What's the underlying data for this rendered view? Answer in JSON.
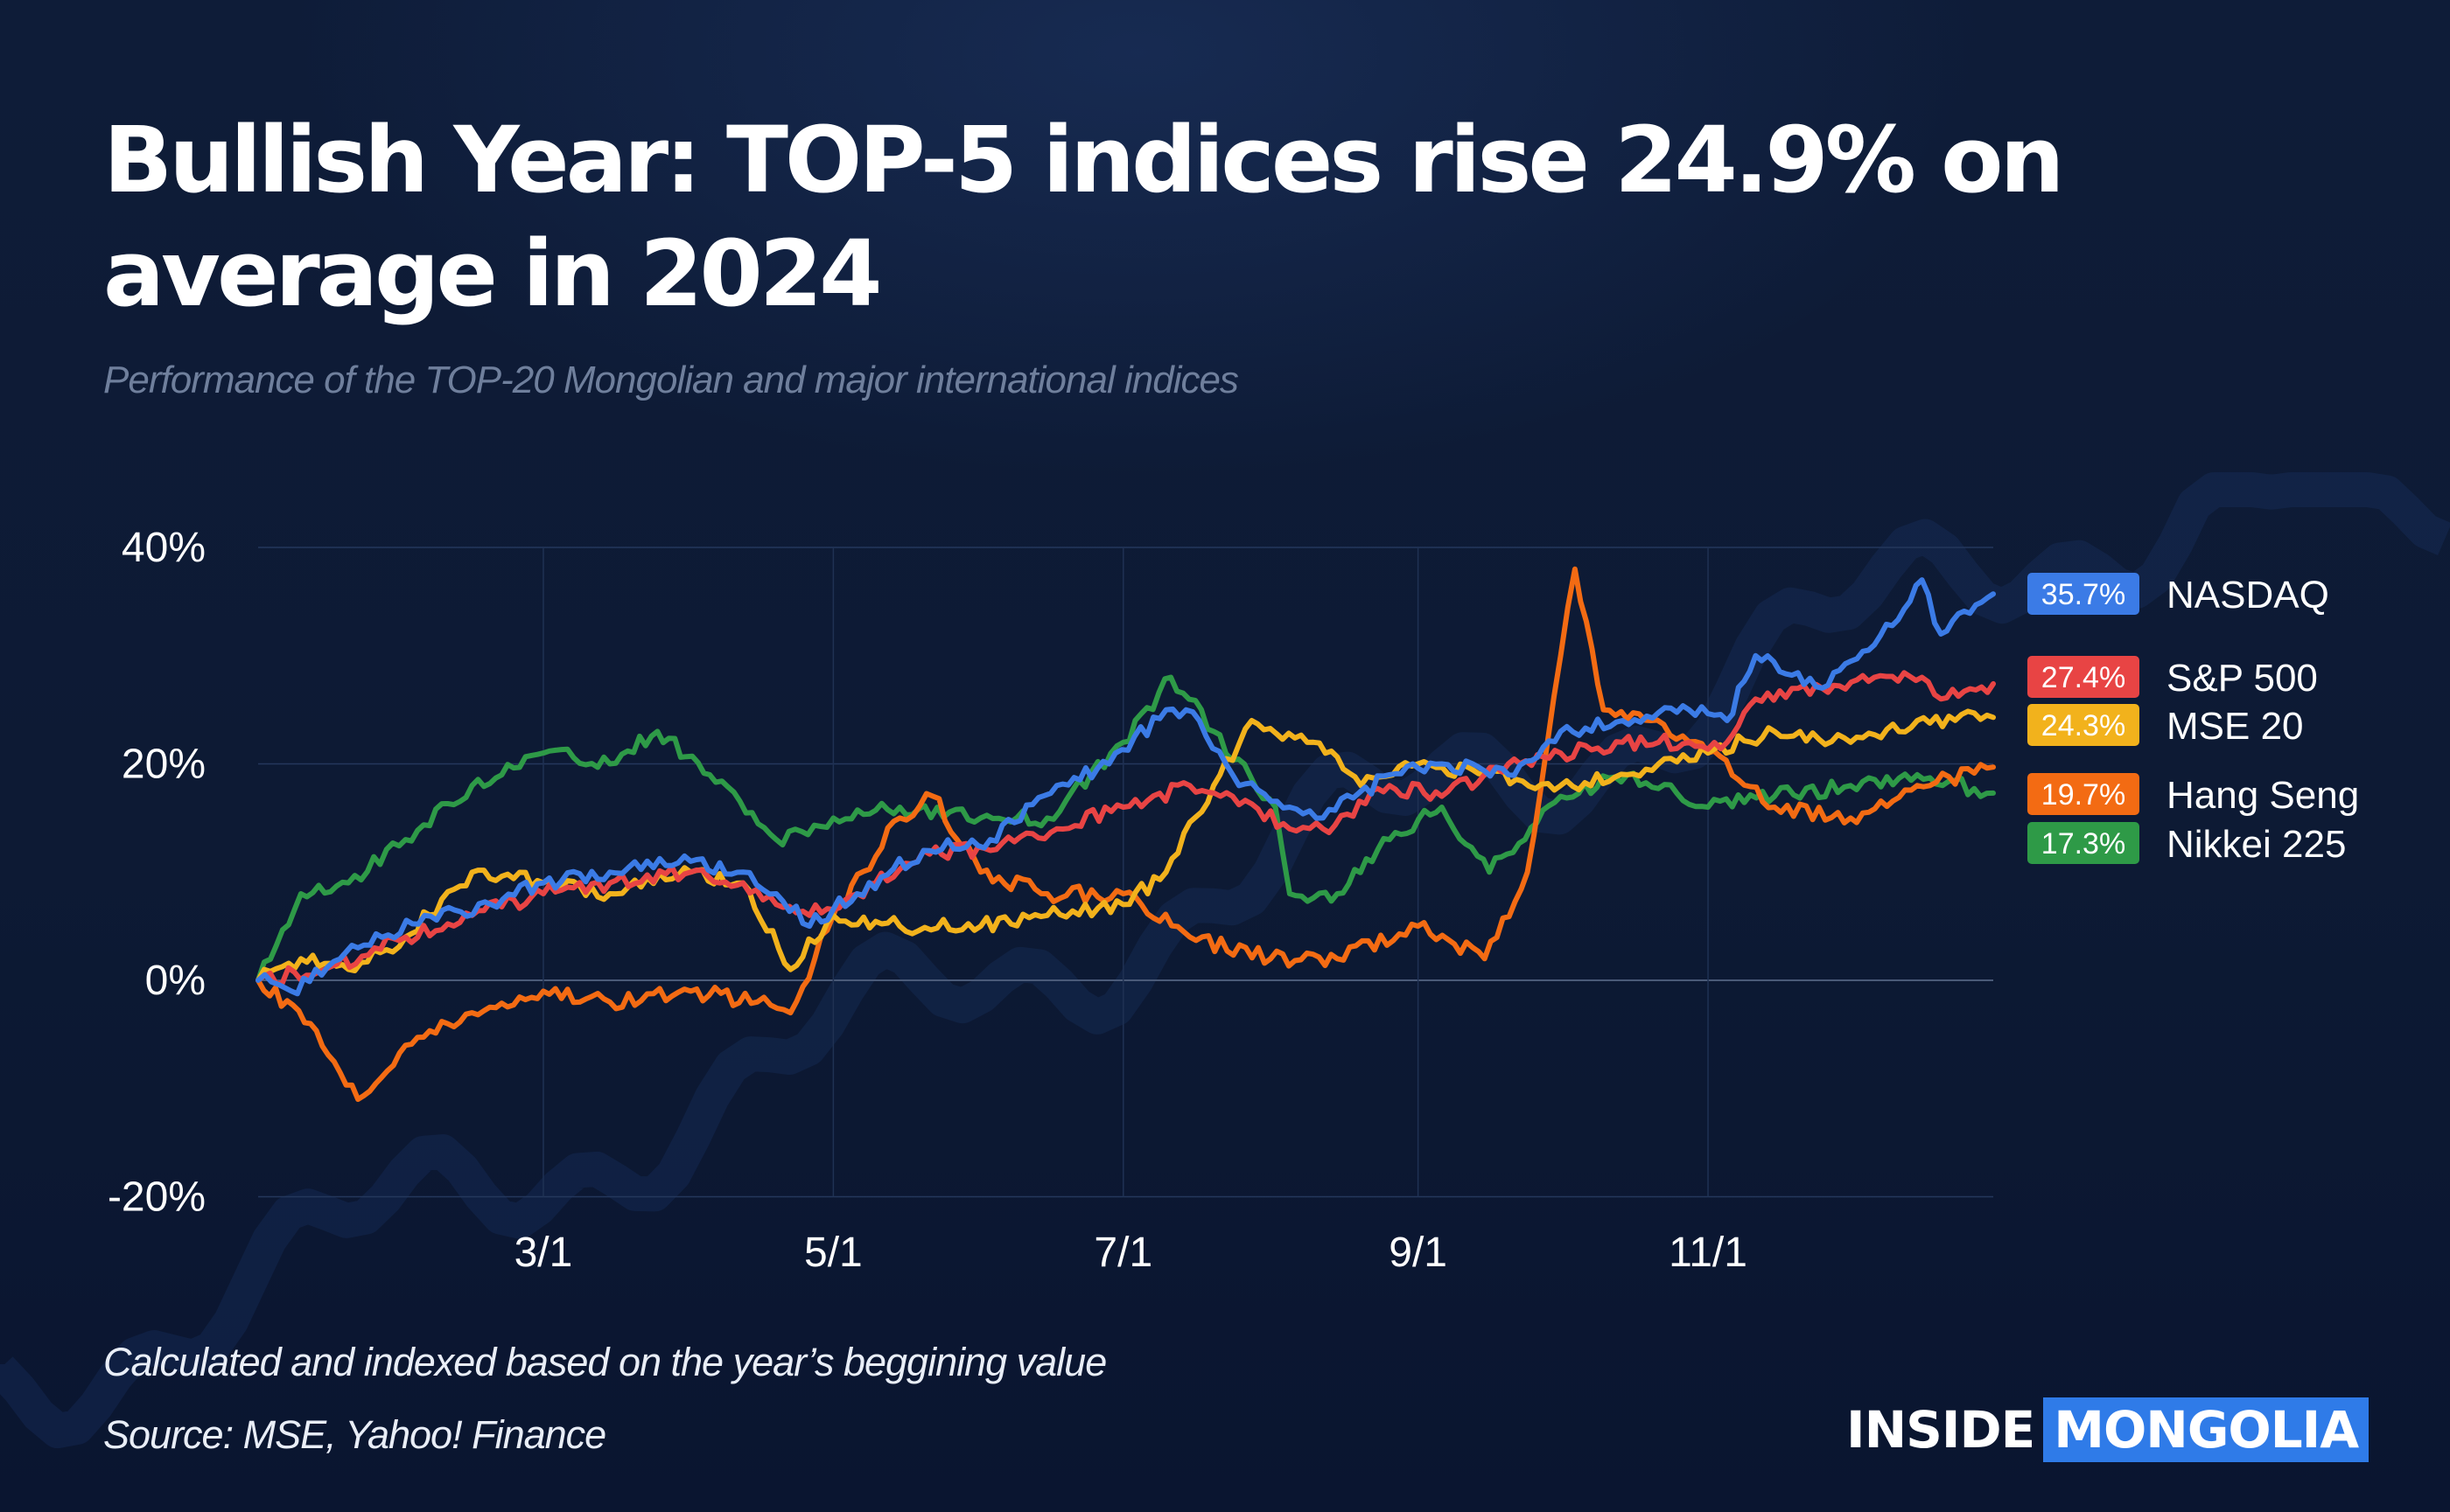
{
  "title": "Bullish Year: TOP-5 indices rise 24.9% on average in 2024",
  "subtitle": "Performance of the TOP-20 Mongolian and major international indices",
  "footnote": "Calculated and indexed based on the year’s beggining value",
  "source": "Source: MSE, Yahoo! Finance",
  "brand": {
    "part1": "INSIDE",
    "part2": "MONGOLIA",
    "accent": "#2f7be8"
  },
  "chart_data": {
    "type": "line",
    "title": "Bullish Year: TOP-5 indices rise 24.9% on average in 2024",
    "xlabel": "",
    "ylabel": "",
    "ylim": [
      -20,
      40
    ],
    "xlim": [
      "2024-01-01",
      "2024-12-31"
    ],
    "y_ticks": [
      40,
      20,
      0,
      -20
    ],
    "y_tick_labels": [
      "40%",
      "20%",
      "0%",
      "-20%"
    ],
    "x_ticks": [
      "2024-03-01",
      "2024-05-01",
      "2024-07-01",
      "2024-09-01",
      "2024-11-01"
    ],
    "x_tick_labels": [
      "3/1",
      "5/1",
      "7/1",
      "9/1",
      "11/1"
    ],
    "grid": true,
    "legend_position": "right",
    "series": [
      {
        "name": "NASDAQ",
        "color": "#3b7be6",
        "final_label": "35.7%",
        "points": [
          [
            "2024-01-01",
            0
          ],
          [
            "2024-01-08",
            -1
          ],
          [
            "2024-01-22",
            3
          ],
          [
            "2024-02-05",
            6
          ],
          [
            "2024-02-19",
            7
          ],
          [
            "2024-03-01",
            9
          ],
          [
            "2024-03-15",
            10
          ],
          [
            "2024-04-01",
            11
          ],
          [
            "2024-04-12",
            10
          ],
          [
            "2024-04-19",
            8
          ],
          [
            "2024-04-26",
            5
          ],
          [
            "2024-05-06",
            8
          ],
          [
            "2024-05-20",
            12
          ],
          [
            "2024-06-03",
            13
          ],
          [
            "2024-06-17",
            18
          ],
          [
            "2024-06-28",
            20
          ],
          [
            "2024-07-10",
            25
          ],
          [
            "2024-07-17",
            24
          ],
          [
            "2024-07-24",
            19
          ],
          [
            "2024-08-05",
            16
          ],
          [
            "2024-08-12",
            15
          ],
          [
            "2024-08-26",
            19
          ],
          [
            "2024-09-06",
            20
          ],
          [
            "2024-09-20",
            19
          ],
          [
            "2024-10-01",
            23
          ],
          [
            "2024-10-14",
            24
          ],
          [
            "2024-10-28",
            25
          ],
          [
            "2024-11-05",
            24
          ],
          [
            "2024-11-11",
            30
          ],
          [
            "2024-11-25",
            27
          ],
          [
            "2024-12-06",
            31
          ],
          [
            "2024-12-16",
            37
          ],
          [
            "2024-12-20",
            32
          ],
          [
            "2024-12-31",
            35.7
          ]
        ]
      },
      {
        "name": "S&P 500",
        "color": "#e84444",
        "final_label": "27.4%",
        "points": [
          [
            "2024-01-01",
            0
          ],
          [
            "2024-01-15",
            1
          ],
          [
            "2024-02-01",
            4
          ],
          [
            "2024-02-15",
            6
          ],
          [
            "2024-03-01",
            8
          ],
          [
            "2024-03-15",
            9
          ],
          [
            "2024-04-01",
            10
          ],
          [
            "2024-04-12",
            9
          ],
          [
            "2024-04-19",
            7
          ],
          [
            "2024-04-26",
            6
          ],
          [
            "2024-05-06",
            8
          ],
          [
            "2024-05-20",
            12
          ],
          [
            "2024-06-03",
            12
          ],
          [
            "2024-06-17",
            14
          ],
          [
            "2024-07-01",
            16
          ],
          [
            "2024-07-15",
            18
          ],
          [
            "2024-07-24",
            17
          ],
          [
            "2024-08-05",
            14
          ],
          [
            "2024-08-12",
            14
          ],
          [
            "2024-08-26",
            18
          ],
          [
            "2024-09-06",
            17
          ],
          [
            "2024-09-20",
            20
          ],
          [
            "2024-10-01",
            21
          ],
          [
            "2024-10-14",
            22
          ],
          [
            "2024-10-28",
            22
          ],
          [
            "2024-11-05",
            22
          ],
          [
            "2024-11-11",
            26
          ],
          [
            "2024-11-25",
            27
          ],
          [
            "2024-12-06",
            28
          ],
          [
            "2024-12-16",
            28
          ],
          [
            "2024-12-20",
            26
          ],
          [
            "2024-12-31",
            27.4
          ]
        ]
      },
      {
        "name": "MSE 20",
        "color": "#f2b21c",
        "final_label": "24.3%",
        "points": [
          [
            "2024-01-01",
            0
          ],
          [
            "2024-01-10",
            2
          ],
          [
            "2024-01-20",
            1
          ],
          [
            "2024-02-01",
            4
          ],
          [
            "2024-02-15",
            10
          ],
          [
            "2024-03-01",
            9
          ],
          [
            "2024-03-15",
            8
          ],
          [
            "2024-04-01",
            10
          ],
          [
            "2024-04-12",
            9
          ],
          [
            "2024-04-22",
            1
          ],
          [
            "2024-05-01",
            6
          ],
          [
            "2024-05-15",
            5
          ],
          [
            "2024-06-01",
            5
          ],
          [
            "2024-06-15",
            6
          ],
          [
            "2024-07-01",
            7
          ],
          [
            "2024-07-10",
            10
          ],
          [
            "2024-07-20",
            18
          ],
          [
            "2024-07-28",
            24
          ],
          [
            "2024-08-10",
            22
          ],
          [
            "2024-08-20",
            18
          ],
          [
            "2024-09-01",
            20
          ],
          [
            "2024-09-15",
            19
          ],
          [
            "2024-10-01",
            18
          ],
          [
            "2024-10-15",
            19
          ],
          [
            "2024-11-01",
            21
          ],
          [
            "2024-11-15",
            23
          ],
          [
            "2024-12-01",
            22
          ],
          [
            "2024-12-15",
            24
          ],
          [
            "2024-12-31",
            24.3
          ]
        ]
      },
      {
        "name": "Hang Seng",
        "color": "#f36b13",
        "final_label": "19.7%",
        "points": [
          [
            "2024-01-01",
            0
          ],
          [
            "2024-01-12",
            -4
          ],
          [
            "2024-01-22",
            -11
          ],
          [
            "2024-02-01",
            -6
          ],
          [
            "2024-02-15",
            -3
          ],
          [
            "2024-03-01",
            -1
          ],
          [
            "2024-03-15",
            -2
          ],
          [
            "2024-04-01",
            -1
          ],
          [
            "2024-04-15",
            -2
          ],
          [
            "2024-04-22",
            -3
          ],
          [
            "2024-05-01",
            6
          ],
          [
            "2024-05-15",
            15
          ],
          [
            "2024-05-22",
            17
          ],
          [
            "2024-06-01",
            10
          ],
          [
            "2024-06-15",
            8
          ],
          [
            "2024-07-01",
            8
          ],
          [
            "2024-07-15",
            4
          ],
          [
            "2024-08-01",
            2
          ],
          [
            "2024-08-15",
            2
          ],
          [
            "2024-09-01",
            5
          ],
          [
            "2024-09-15",
            2
          ],
          [
            "2024-09-24",
            10
          ],
          [
            "2024-10-01",
            30
          ],
          [
            "2024-10-04",
            38
          ],
          [
            "2024-10-10",
            25
          ],
          [
            "2024-10-20",
            24
          ],
          [
            "2024-11-01",
            21
          ],
          [
            "2024-11-15",
            16
          ],
          [
            "2024-12-01",
            15
          ],
          [
            "2024-12-15",
            18
          ],
          [
            "2024-12-31",
            19.7
          ]
        ]
      },
      {
        "name": "Nikkei 225",
        "color": "#2e9a47",
        "final_label": "17.3%",
        "points": [
          [
            "2024-01-01",
            0
          ],
          [
            "2024-01-10",
            8
          ],
          [
            "2024-01-20",
            9
          ],
          [
            "2024-02-01",
            13
          ],
          [
            "2024-02-15",
            18
          ],
          [
            "2024-03-01",
            21
          ],
          [
            "2024-03-15",
            20
          ],
          [
            "2024-03-25",
            23
          ],
          [
            "2024-04-05",
            19
          ],
          [
            "2024-04-19",
            13
          ],
          [
            "2024-05-01",
            15
          ],
          [
            "2024-05-15",
            16
          ],
          [
            "2024-06-01",
            15
          ],
          [
            "2024-06-15",
            15
          ],
          [
            "2024-07-01",
            22
          ],
          [
            "2024-07-11",
            28
          ],
          [
            "2024-07-20",
            23
          ],
          [
            "2024-08-02",
            16
          ],
          [
            "2024-08-05",
            8
          ],
          [
            "2024-08-15",
            8
          ],
          [
            "2024-08-26",
            13
          ],
          [
            "2024-09-06",
            16
          ],
          [
            "2024-09-16",
            10
          ],
          [
            "2024-10-01",
            17
          ],
          [
            "2024-10-15",
            19
          ],
          [
            "2024-11-01",
            16
          ],
          [
            "2024-11-15",
            17
          ],
          [
            "2024-12-01",
            18
          ],
          [
            "2024-12-15",
            19
          ],
          [
            "2024-12-31",
            17.3
          ]
        ]
      }
    ]
  }
}
